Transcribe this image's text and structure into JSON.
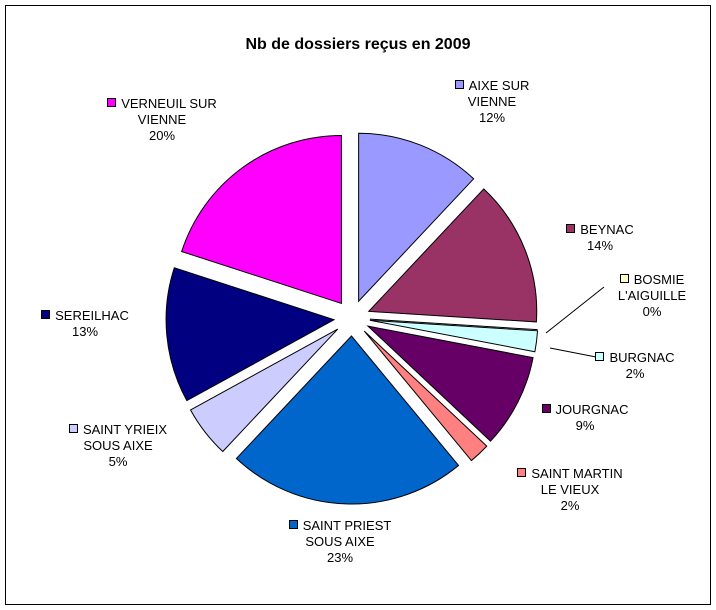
{
  "chart_data": {
    "type": "pie",
    "title": "Nb de dossiers reçus en 2009",
    "categories": [
      "AIXE SUR VIENNE",
      "BEYNAC",
      "BOSMIE L'AIGUILLE",
      "BURGNAC",
      "JOURGNAC",
      "SAINT MARTIN LE VIEUX",
      "SAINT PRIEST SOUS AIXE",
      "SAINT YRIEIX SOUS AIXE",
      "SEREILHAC",
      "VERNEUIL SUR VIENNE"
    ],
    "values": [
      12,
      14,
      0,
      2,
      9,
      2,
      23,
      5,
      13,
      20
    ],
    "value_labels": [
      "12%",
      "14%",
      "0%",
      "2%",
      "9%",
      "2%",
      "23%",
      "5%",
      "13%",
      "20%"
    ],
    "colors": [
      "#9999ff",
      "#993366",
      "#ffffcc",
      "#ccffff",
      "#660066",
      "#ff8080",
      "#0066cc",
      "#ccccff",
      "#000080",
      "#ff00ff"
    ]
  }
}
